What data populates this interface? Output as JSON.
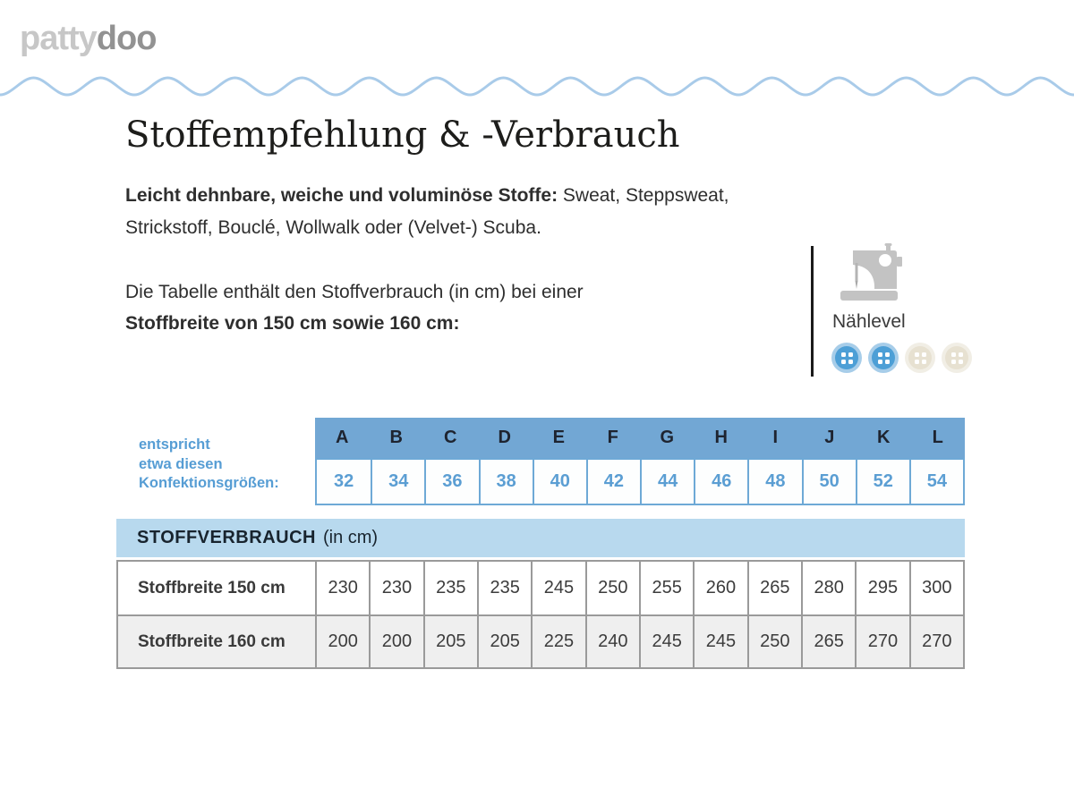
{
  "logo": {
    "part1": "patty",
    "part2": "doo"
  },
  "page": {
    "title": "Stoffempfehlung & -Verbrauch"
  },
  "intro": {
    "line1_bold": "Leicht dehnbare, weiche und voluminöse Stoffe:",
    "line1_regular": "Sweat, Steppsweat,",
    "line2": "Strickstoff, Bouclé, Wollwalk oder (Velvet-) Scuba."
  },
  "note": {
    "line1": "Die Tabelle enthält den Stoffverbrauch (in cm) bei einer",
    "line2": "Stoffbreite von 150 cm sowie 160 cm:"
  },
  "naehlevel": {
    "label": "Nählevel",
    "level": 2,
    "max": 4,
    "active_color": "#4d9fd6",
    "inactive_color": "#e7e1d1"
  },
  "size_table": {
    "caption_lines": [
      "entspricht",
      "etwa diesen",
      "Konfektionsgrößen:"
    ],
    "letters": [
      "A",
      "B",
      "C",
      "D",
      "E",
      "F",
      "G",
      "H",
      "I",
      "J",
      "K",
      "L"
    ],
    "sizes": [
      "32",
      "34",
      "36",
      "38",
      "40",
      "42",
      "44",
      "46",
      "48",
      "50",
      "52",
      "54"
    ]
  },
  "consumption_table": {
    "header_bold": "STOFFVERBRAUCH",
    "header_regular": "(in cm)",
    "rows": [
      {
        "label": "Stoffbreite 150 cm",
        "values": [
          230,
          230,
          235,
          235,
          245,
          250,
          255,
          260,
          265,
          280,
          295,
          300
        ]
      },
      {
        "label": "Stoffbreite 160 cm",
        "values": [
          200,
          200,
          205,
          205,
          225,
          240,
          245,
          245,
          250,
          265,
          270,
          270
        ]
      }
    ]
  },
  "colors": {
    "accent_blue": "#569dd4",
    "header_blue": "#72a7d4",
    "band_blue": "#b8d9ee",
    "wave_blue": "#a9cbe9",
    "row_alt_gray": "#efefef",
    "border_gray": "#9a9a9a"
  }
}
